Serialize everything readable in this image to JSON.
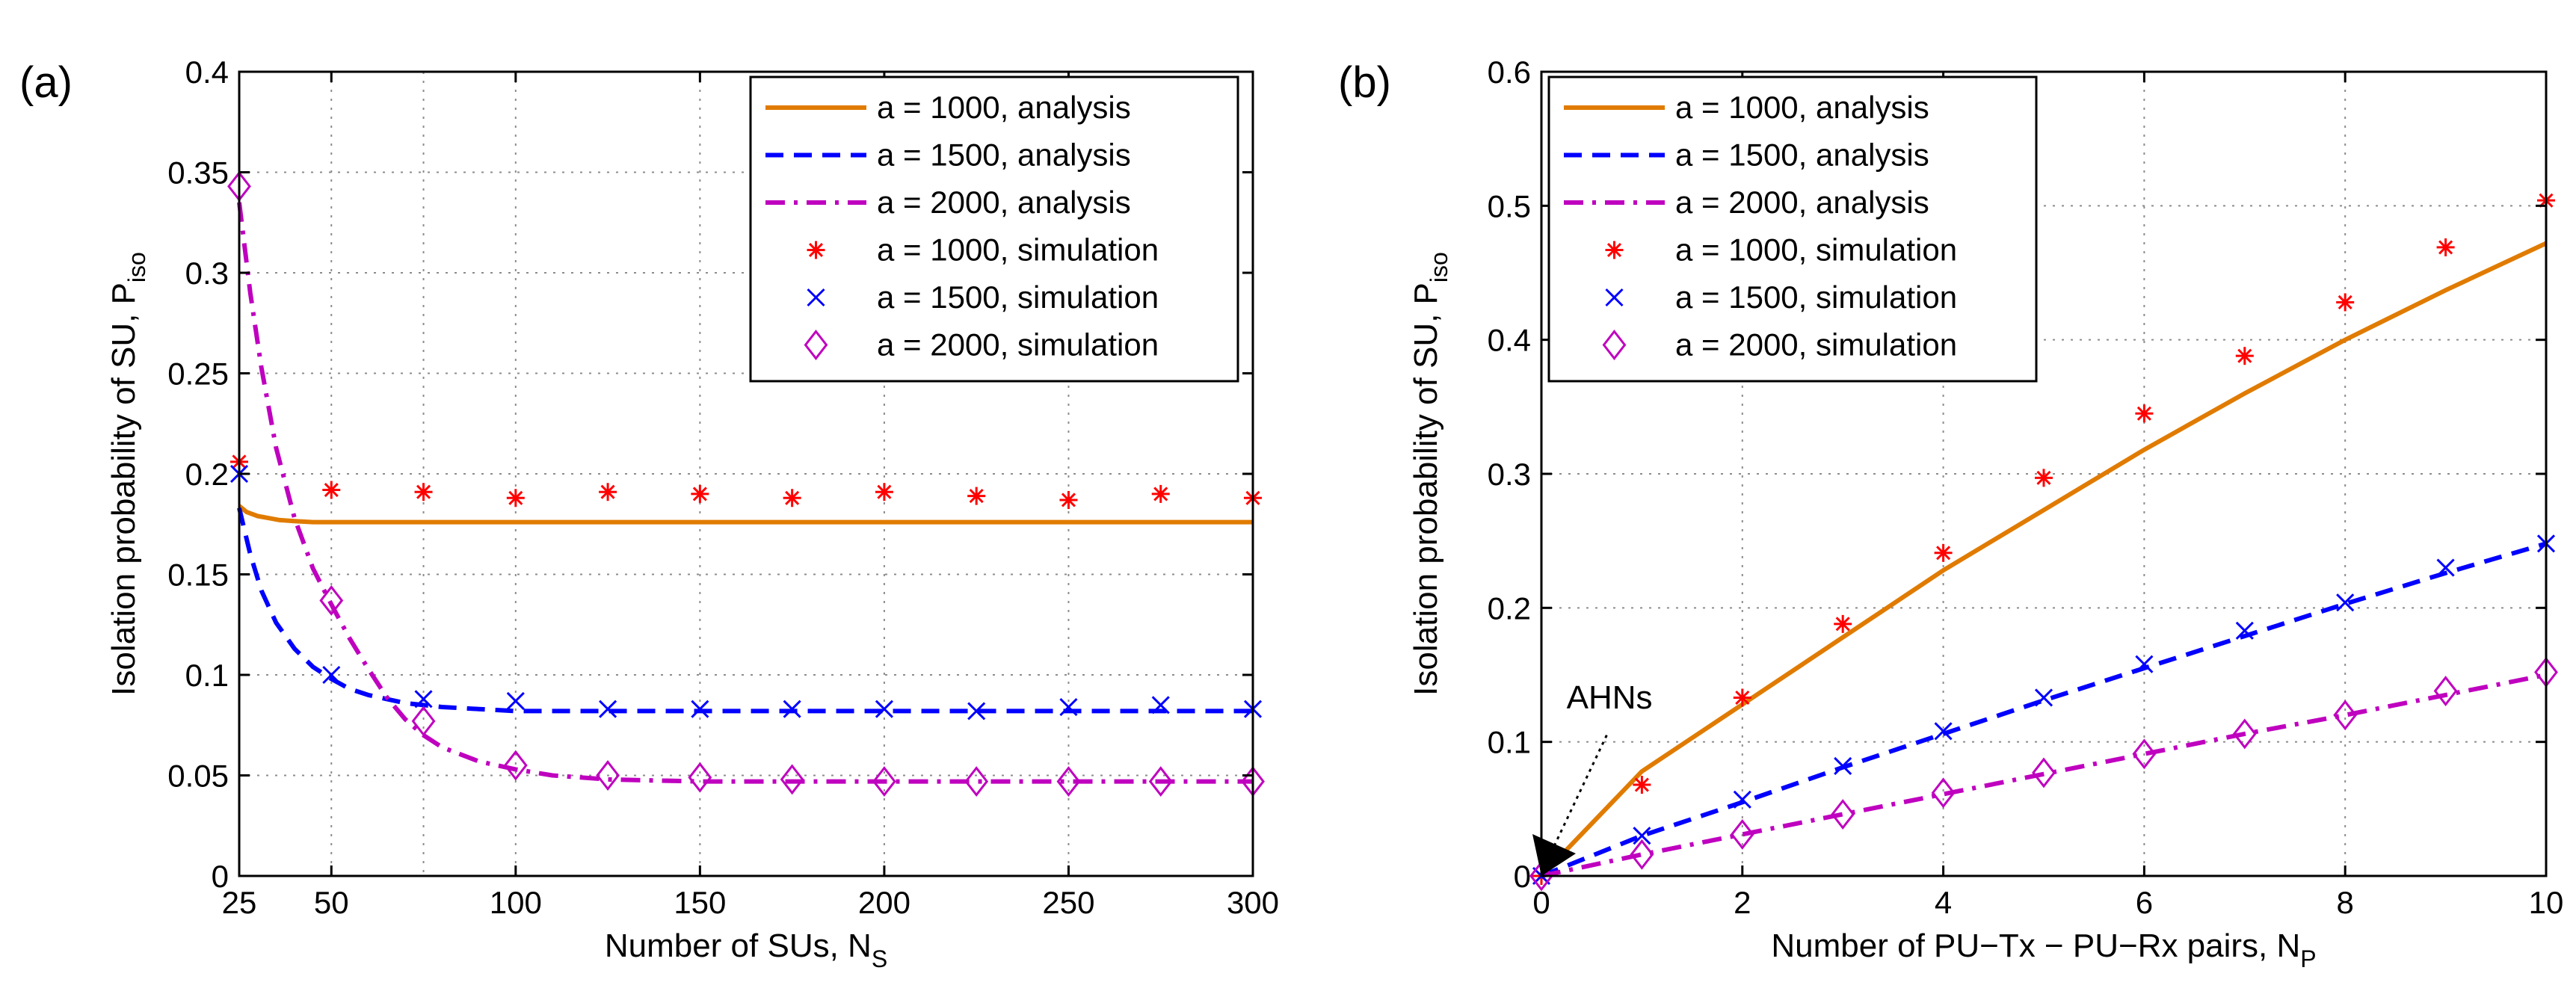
{
  "colors": {
    "a1000": "#e07b00",
    "a1500": "#0000ff",
    "a2000": "#bf00bf",
    "sim1000": "#ff0000",
    "sim1500": "#0000ff",
    "sim2000": "#bf00bf"
  },
  "chart_data": [
    {
      "type": "line",
      "panel_label": "(a)",
      "xlabel": "Number of SUs, N",
      "xlabel_sub": "S",
      "ylabel": "Isolation probability of SU, P",
      "ylabel_sub": "iso",
      "xlim": [
        25,
        300
      ],
      "ylim": [
        0,
        0.4
      ],
      "xticks": [
        25,
        50,
        100,
        150,
        200,
        250,
        300
      ],
      "xtick_labels": [
        "25",
        "50",
        "100",
        "150",
        "200",
        "250",
        "300"
      ],
      "xgrid": [
        50,
        75,
        100,
        150,
        200,
        250,
        300
      ],
      "yticks": [
        0,
        0.05,
        0.1,
        0.15,
        0.2,
        0.25,
        0.3,
        0.35,
        0.4
      ],
      "ytick_labels": [
        "0",
        "0.05",
        "0.1",
        "0.15",
        "0.2",
        "0.25",
        "0.3",
        "0.35",
        "0.4"
      ],
      "legend_position": "top-right",
      "series": [
        {
          "name": "a = 1000, analysis",
          "key": "a1000",
          "style": "solid",
          "x": [
            25,
            27,
            30,
            33,
            36,
            40,
            45,
            50,
            60,
            80,
            100,
            150,
            200,
            250,
            300
          ],
          "y": [
            0.184,
            0.181,
            0.179,
            0.178,
            0.177,
            0.1765,
            0.176,
            0.176,
            0.176,
            0.176,
            0.176,
            0.176,
            0.176,
            0.176,
            0.176
          ]
        },
        {
          "name": "a = 1500, analysis",
          "key": "a1500",
          "style": "dash",
          "x": [
            25,
            28,
            31,
            35,
            40,
            45,
            50,
            55,
            60,
            65,
            70,
            80,
            90,
            100,
            125,
            150,
            200,
            250,
            300
          ],
          "y": [
            0.183,
            0.16,
            0.142,
            0.126,
            0.113,
            0.104,
            0.098,
            0.093,
            0.09,
            0.088,
            0.086,
            0.084,
            0.083,
            0.082,
            0.082,
            0.082,
            0.082,
            0.082,
            0.082
          ]
        },
        {
          "name": "a = 2000, analysis",
          "key": "a2000",
          "style": "dashdot",
          "x": [
            25,
            28,
            31,
            35,
            40,
            45,
            50,
            55,
            60,
            65,
            70,
            75,
            80,
            90,
            100,
            110,
            125,
            150,
            200,
            250,
            300
          ],
          "y": [
            0.335,
            0.29,
            0.253,
            0.213,
            0.178,
            0.153,
            0.135,
            0.118,
            0.103,
            0.089,
            0.078,
            0.07,
            0.064,
            0.057,
            0.053,
            0.05,
            0.048,
            0.047,
            0.047,
            0.047,
            0.047
          ]
        },
        {
          "name": "a = 1000, simulation",
          "key": "sim1000",
          "marker": "star",
          "x": [
            25,
            50,
            75,
            100,
            125,
            150,
            175,
            200,
            225,
            250,
            275,
            300
          ],
          "y": [
            0.206,
            0.192,
            0.191,
            0.188,
            0.191,
            0.19,
            0.188,
            0.191,
            0.189,
            0.187,
            0.19,
            0.188
          ]
        },
        {
          "name": "a = 1500, simulation",
          "key": "sim1500",
          "marker": "x",
          "x": [
            25,
            50,
            75,
            100,
            125,
            150,
            175,
            200,
            225,
            250,
            275,
            300
          ],
          "y": [
            0.2,
            0.1,
            0.088,
            0.087,
            0.083,
            0.083,
            0.083,
            0.083,
            0.082,
            0.084,
            0.085,
            0.083
          ]
        },
        {
          "name": "a = 2000, simulation",
          "key": "sim2000",
          "marker": "diamond",
          "x": [
            25,
            50,
            75,
            100,
            125,
            150,
            175,
            200,
            225,
            250,
            275,
            300
          ],
          "y": [
            0.343,
            0.137,
            0.077,
            0.055,
            0.05,
            0.049,
            0.048,
            0.047,
            0.047,
            0.047,
            0.047,
            0.047
          ]
        }
      ]
    },
    {
      "type": "line",
      "panel_label": "(b)",
      "xlabel": "Number of PU−Tx − PU−Rx pairs, N",
      "xlabel_sub": "P",
      "ylabel": "Isolation probability of SU, P",
      "ylabel_sub": "iso",
      "xlim": [
        0,
        10
      ],
      "ylim": [
        0,
        0.6
      ],
      "xticks": [
        0,
        2,
        4,
        6,
        8,
        10
      ],
      "xtick_labels": [
        "0",
        "2",
        "4",
        "6",
        "8",
        "10"
      ],
      "xgrid": [
        2,
        4,
        6,
        8,
        10
      ],
      "yticks": [
        0,
        0.1,
        0.2,
        0.3,
        0.4,
        0.5,
        0.6
      ],
      "ytick_labels": [
        "0",
        "0.1",
        "0.2",
        "0.3",
        "0.4",
        "0.5",
        "0.6"
      ],
      "legend_position": "top-left",
      "annotation": {
        "text": "AHNs",
        "points_to": [
          0,
          0
        ]
      },
      "series": [
        {
          "name": "a = 1000, analysis",
          "key": "a1000",
          "style": "solid",
          "x": [
            0,
            1,
            2,
            3,
            4,
            5,
            6,
            7,
            8,
            9,
            10
          ],
          "y": [
            0.0,
            0.078,
            0.128,
            0.178,
            0.228,
            0.273,
            0.318,
            0.36,
            0.4,
            0.437,
            0.472
          ]
        },
        {
          "name": "a = 1500, analysis",
          "key": "a1500",
          "style": "dash",
          "x": [
            0,
            1,
            2,
            3,
            4,
            5,
            6,
            7,
            8,
            9,
            10
          ],
          "y": [
            0.0,
            0.03,
            0.055,
            0.081,
            0.106,
            0.131,
            0.155,
            0.179,
            0.203,
            0.226,
            0.248
          ]
        },
        {
          "name": "a = 2000, analysis",
          "key": "a2000",
          "style": "dashdot",
          "x": [
            0,
            1,
            2,
            3,
            4,
            5,
            6,
            7,
            8,
            9,
            10
          ],
          "y": [
            0.0,
            0.016,
            0.031,
            0.046,
            0.061,
            0.076,
            0.091,
            0.106,
            0.12,
            0.135,
            0.15
          ]
        },
        {
          "name": "a = 1000, simulation",
          "key": "sim1000",
          "marker": "star",
          "x": [
            0,
            1,
            2,
            3,
            4,
            5,
            6,
            7,
            8,
            9,
            10
          ],
          "y": [
            0.0,
            0.068,
            0.133,
            0.188,
            0.241,
            0.297,
            0.345,
            0.388,
            0.428,
            0.469,
            0.504
          ]
        },
        {
          "name": "a = 1500, simulation",
          "key": "sim1500",
          "marker": "x",
          "x": [
            0,
            1,
            2,
            3,
            4,
            5,
            6,
            7,
            8,
            9,
            10
          ],
          "y": [
            0.0,
            0.03,
            0.057,
            0.082,
            0.108,
            0.133,
            0.158,
            0.183,
            0.204,
            0.23,
            0.248
          ]
        },
        {
          "name": "a = 2000, simulation",
          "key": "sim2000",
          "marker": "diamond",
          "x": [
            0,
            1,
            2,
            3,
            4,
            5,
            6,
            7,
            8,
            9,
            10
          ],
          "y": [
            0.0,
            0.016,
            0.031,
            0.046,
            0.062,
            0.077,
            0.091,
            0.106,
            0.12,
            0.138,
            0.152
          ]
        }
      ]
    }
  ]
}
